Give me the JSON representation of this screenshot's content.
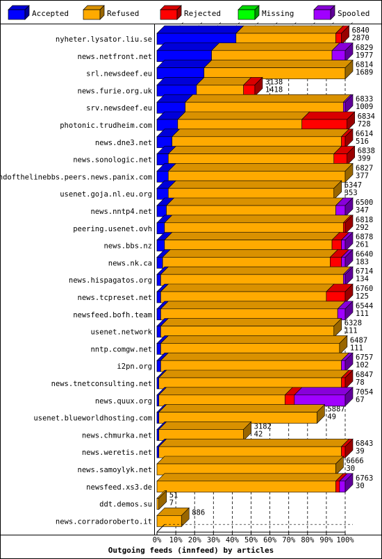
{
  "chart_data": {
    "type": "bar",
    "stacked": true,
    "orientation": "horizontal",
    "title": "Outgoing feeds (innfeed) by articles",
    "xlabel": "",
    "ylabel": "",
    "xlim": [
      0,
      100
    ],
    "grid": true,
    "legend_position": "top",
    "x_ticks": [
      "0%",
      "10%",
      "20%",
      "30%",
      "40%",
      "50%",
      "60%",
      "70%",
      "80%",
      "90%",
      "100%"
    ],
    "legend": [
      {
        "name": "Accepted",
        "color": "#0000ff"
      },
      {
        "name": "Refused",
        "color": "#ffaa00"
      },
      {
        "name": "Rejected",
        "color": "#ff0000"
      },
      {
        "name": "Missing",
        "color": "#00ff00"
      },
      {
        "name": "Spooled",
        "color": "#a000ff"
      }
    ],
    "rows": [
      {
        "label": "nyheter.lysator.liu.se",
        "total": "6840",
        "accepted": "2870",
        "segments": [
          42,
          53,
          3,
          0,
          0
        ]
      },
      {
        "label": "news.netfront.net",
        "total": "6829",
        "accepted": "1977",
        "segments": [
          29,
          64,
          0,
          0,
          7
        ]
      },
      {
        "label": "srl.newsdeef.eu",
        "total": "6814",
        "accepted": "1689",
        "segments": [
          25,
          75,
          0,
          0,
          0
        ]
      },
      {
        "label": "news.furie.org.uk",
        "total": "3138",
        "accepted": "1418",
        "segments": [
          21,
          25,
          6,
          0,
          0
        ]
      },
      {
        "label": "srv.newsdeef.eu",
        "total": "6833",
        "accepted": "1009",
        "segments": [
          15,
          84,
          0,
          0,
          1
        ]
      },
      {
        "label": "photonic.trudheim.com",
        "total": "6834",
        "accepted": "728",
        "segments": [
          11,
          66,
          24,
          0,
          0
        ]
      },
      {
        "label": "news.dne3.net",
        "total": "6614",
        "accepted": "516",
        "segments": [
          8,
          90,
          2,
          0,
          0
        ]
      },
      {
        "label": "news.sonologic.net",
        "total": "6838",
        "accepted": "399",
        "segments": [
          6,
          88,
          7,
          0,
          0
        ]
      },
      {
        "label": "endofthelinebbs.peers.news.panix.com",
        "total": "6827",
        "accepted": "377",
        "segments": [
          6,
          94,
          0,
          0,
          0
        ]
      },
      {
        "label": "usenet.goja.nl.eu.org",
        "total": "6347",
        "accepted": "353",
        "segments": [
          6,
          88,
          0,
          0,
          0
        ]
      },
      {
        "label": "news.nntp4.net",
        "total": "6500",
        "accepted": "347",
        "segments": [
          5,
          90,
          0,
          0,
          5
        ]
      },
      {
        "label": "peering.usenet.ovh",
        "total": "6818",
        "accepted": "292",
        "segments": [
          4,
          95,
          1,
          0,
          0
        ]
      },
      {
        "label": "news.bbs.nz",
        "total": "6878",
        "accepted": "261",
        "segments": [
          4,
          89,
          5,
          0,
          2
        ]
      },
      {
        "label": "news.nk.ca",
        "total": "6640",
        "accepted": "183",
        "segments": [
          3,
          89,
          6,
          0,
          2
        ]
      },
      {
        "label": "news.hispagatos.org",
        "total": "6714",
        "accepted": "134",
        "segments": [
          2,
          97,
          0,
          0,
          1
        ]
      },
      {
        "label": "news.tcpreset.net",
        "total": "6760",
        "accepted": "125",
        "segments": [
          2,
          88,
          10,
          0,
          0
        ]
      },
      {
        "label": "newsfeed.bofh.team",
        "total": "6544",
        "accepted": "111",
        "segments": [
          2,
          94,
          0,
          0,
          4
        ]
      },
      {
        "label": "usenet.network",
        "total": "6328",
        "accepted": "111",
        "segments": [
          2,
          92,
          0,
          0,
          0
        ]
      },
      {
        "label": "nntp.comgw.net",
        "total": "6487",
        "accepted": "111",
        "segments": [
          2,
          95,
          0,
          0,
          0
        ]
      },
      {
        "label": "i2pn.org",
        "total": "6757",
        "accepted": "102",
        "segments": [
          2,
          96,
          0,
          0,
          2
        ]
      },
      {
        "label": "news.tnetconsulting.net",
        "total": "6847",
        "accepted": "78",
        "segments": [
          1,
          97,
          2,
          0,
          0
        ]
      },
      {
        "label": "news.quux.org",
        "total": "7054",
        "accepted": "67",
        "segments": [
          1,
          67,
          5,
          0,
          27
        ]
      },
      {
        "label": "usenet.blueworldhosting.com",
        "total": "5887",
        "accepted": "49",
        "segments": [
          1,
          84,
          0,
          0,
          0
        ]
      },
      {
        "label": "news.chmurka.net",
        "total": "3182",
        "accepted": "42",
        "segments": [
          1,
          45,
          0,
          0,
          0
        ]
      },
      {
        "label": "news.weretis.net",
        "total": "6843",
        "accepted": "39",
        "segments": [
          1,
          97,
          2,
          0,
          0
        ]
      },
      {
        "label": "news.samoylyk.net",
        "total": "6666",
        "accepted": "30",
        "segments": [
          0,
          95,
          0,
          0,
          0
        ]
      },
      {
        "label": "newsfeed.xs3.de",
        "total": "6763",
        "accepted": "30",
        "segments": [
          0,
          95,
          2,
          0,
          3
        ]
      },
      {
        "label": "ddt.demos.su",
        "total": "51",
        "accepted": "7",
        "segments": [
          0,
          1,
          0,
          0,
          0
        ]
      },
      {
        "label": "news.corradoroberto.it",
        "total": "886",
        "accepted": "",
        "segments": [
          0,
          13,
          0,
          0,
          0
        ]
      }
    ]
  }
}
